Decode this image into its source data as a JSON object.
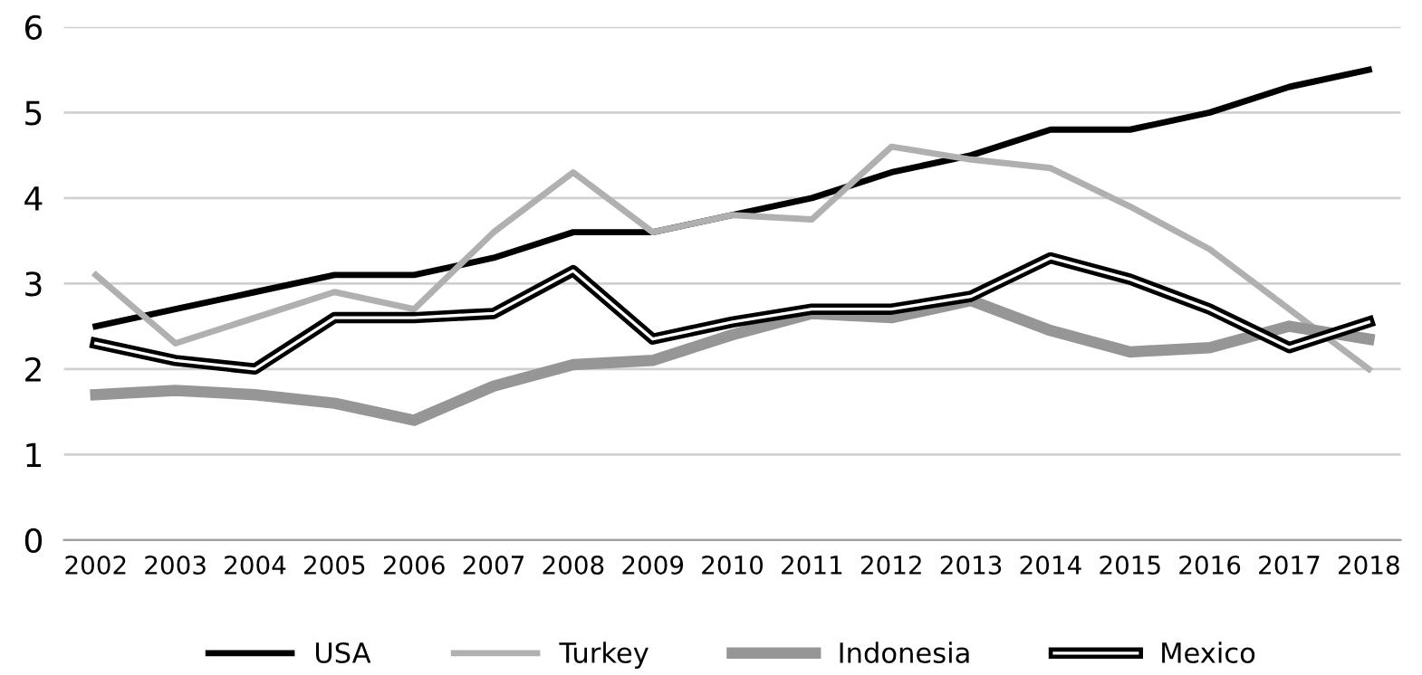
{
  "chart_data": {
    "type": "line",
    "categories": [
      "2002",
      "2003",
      "2004",
      "2005",
      "2006",
      "2007",
      "2008",
      "2009",
      "2010",
      "2011",
      "2012",
      "2013",
      "2014",
      "2015",
      "2016",
      "2017",
      "2018"
    ],
    "series": [
      {
        "name": "USA",
        "color": "#000000",
        "values": [
          2.5,
          2.7,
          2.9,
          3.1,
          3.1,
          3.3,
          3.6,
          3.6,
          3.8,
          4.0,
          4.3,
          4.5,
          4.8,
          4.8,
          5.0,
          5.3,
          5.5
        ]
      },
      {
        "name": "Turkey",
        "color": "#b0b0b0",
        "values": [
          3.1,
          2.3,
          2.6,
          2.9,
          2.7,
          3.6,
          4.3,
          3.6,
          3.8,
          3.75,
          4.6,
          4.45,
          4.35,
          3.9,
          3.4,
          2.7,
          2.0
        ]
      },
      {
        "name": "Indonesia",
        "color": "#969696",
        "values": [
          1.7,
          1.75,
          1.7,
          1.6,
          1.4,
          1.8,
          2.05,
          2.1,
          2.4,
          2.65,
          2.6,
          2.8,
          2.45,
          2.2,
          2.25,
          2.5,
          2.35
        ]
      },
      {
        "name": "Mexico",
        "color": "#000000",
        "values": [
          2.3,
          2.1,
          2.0,
          2.6,
          2.6,
          2.65,
          3.15,
          2.35,
          2.55,
          2.7,
          2.7,
          2.85,
          3.3,
          3.05,
          2.7,
          2.25,
          2.55
        ]
      }
    ],
    "ylim": [
      0,
      6
    ],
    "yticks": [
      0,
      1,
      2,
      3,
      4,
      5,
      6
    ],
    "grid": "y",
    "legend": "bottom",
    "marker": "none"
  }
}
